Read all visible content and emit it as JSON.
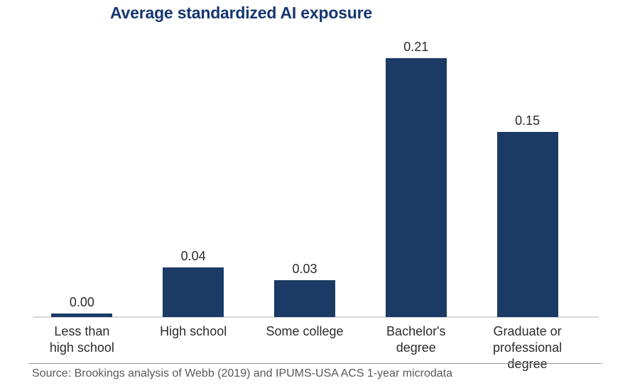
{
  "chart_data": {
    "type": "bar",
    "title": "Average standardized AI exposure",
    "categories": [
      "Less than high school",
      "High school",
      "Some college",
      "Bachelor's degree",
      "Graduate or professional degree"
    ],
    "tick_label_lines": [
      [
        "Less than",
        "high school"
      ],
      [
        "High school"
      ],
      [
        "Some college"
      ],
      [
        "Bachelor's",
        "degree"
      ],
      [
        "Graduate or",
        "professional degree"
      ]
    ],
    "values": [
      0.0,
      0.04,
      0.03,
      0.21,
      0.15
    ],
    "value_labels": [
      "0.00",
      "0.04",
      "0.03",
      "0.21",
      "0.15"
    ],
    "xlabel": "",
    "ylabel": "",
    "ylim": [
      0,
      0.23
    ],
    "grid": false,
    "legend": false,
    "layout": {
      "y_axis_hidden": true,
      "value_labels_position": "above-bar"
    },
    "colors": {
      "bar": "#1b3a66",
      "title": "#16366f",
      "label_text": "#2b2b2b",
      "axis_line": "#d9d9d9"
    }
  },
  "footer": {
    "source": "Source: Brookings analysis of Webb (2019) and IPUMS-USA ACS 1-year microdata",
    "divider_color": "#999999",
    "text_color": "#58595b"
  }
}
